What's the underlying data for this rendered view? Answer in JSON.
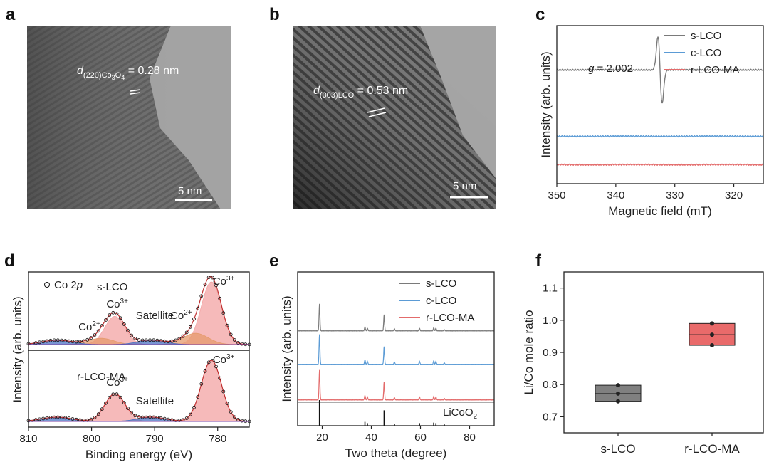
{
  "panels": {
    "a": {
      "label": "a",
      "scalebar": "5 nm",
      "d_main": "d",
      "d_sub": "(220)Co",
      "d_sub2": "3",
      "d_sub3": "O",
      "d_sub4": "4",
      "d_value": " = 0.28 nm"
    },
    "b": {
      "label": "b",
      "scalebar": "5 nm",
      "d_main": "d",
      "d_sub": "(003)LCO",
      "d_value": " = 0.53 nm"
    },
    "c": {
      "label": "c"
    },
    "d": {
      "label": "d"
    },
    "e": {
      "label": "e"
    },
    "f": {
      "label": "f"
    }
  },
  "chart_data": [
    {
      "id": "c",
      "type": "line",
      "xlabel": "Magnetic field (mT)",
      "ylabel": "Intensity (arb. units)",
      "xlim": [
        350,
        315
      ],
      "xticks": [
        350,
        340,
        330,
        320
      ],
      "annotation": {
        "g_symbol": "g",
        "g_text": " = 2.002"
      },
      "series": [
        {
          "name": "s-LCO",
          "color": "#7a7a7a",
          "baseline": 0.72,
          "peak_center": 332.5,
          "peak_amp": 0.22
        },
        {
          "name": "c-LCO",
          "color": "#5b9bd5",
          "baseline": 0.3,
          "peak_center": null,
          "peak_amp": 0
        },
        {
          "name": "r-LCO-MA",
          "color": "#e36b6b",
          "baseline": 0.12,
          "peak_center": null,
          "peak_amp": 0
        }
      ]
    },
    {
      "id": "d",
      "type": "line",
      "xlabel": "Binding energy (eV)",
      "ylabel": "Intensity (arb. units)",
      "xlim": [
        810,
        775
      ],
      "xticks": [
        810,
        800,
        790,
        780
      ],
      "legend": {
        "marker_label": "Co 2",
        "marker_label_italic": "p"
      },
      "subplots": [
        {
          "name": "s-LCO",
          "peaks": [
            {
              "label": "Co3+",
              "center": 781,
              "height": 1.0,
              "width": 1.6,
              "color": "#f3a3a3"
            },
            {
              "label": "Co3+",
              "center": 796.3,
              "height": 0.45,
              "width": 1.6,
              "color": "#f3a3a3"
            },
            {
              "label": "Co2+",
              "center": 783.5,
              "height": 0.18,
              "width": 2.0,
              "color": "#e59a6c"
            },
            {
              "label": "Co2+",
              "center": 798.5,
              "height": 0.1,
              "width": 2.0,
              "color": "#e59a6c"
            },
            {
              "label": "Satellite",
              "center": 790.5,
              "height": 0.07,
              "width": 2.2,
              "color": "#4c72c4"
            },
            {
              "label": "Satellite",
              "center": 805.5,
              "height": 0.07,
              "width": 2.4,
              "color": "#4c72c4"
            }
          ],
          "texts": {
            "co3_right": "Co",
            "co3_mid": "Co",
            "co2_right": "Co",
            "co2_left": "Co",
            "sup3": "3+",
            "sup2": "2+",
            "satellite": "Satellite"
          }
        },
        {
          "name": "r-LCO-MA",
          "peaks": [
            {
              "label": "Co3+",
              "center": 781,
              "height": 1.0,
              "width": 1.6,
              "color": "#f3a3a3"
            },
            {
              "label": "Co3+",
              "center": 796.3,
              "height": 0.45,
              "width": 1.6,
              "color": "#f3a3a3"
            },
            {
              "label": "Satellite",
              "center": 790.5,
              "height": 0.07,
              "width": 2.2,
              "color": "#4c72c4"
            },
            {
              "label": "Satellite",
              "center": 805.5,
              "height": 0.07,
              "width": 2.4,
              "color": "#4c72c4"
            }
          ],
          "texts": {
            "co3_right": "Co",
            "co3_mid": "Co",
            "sup3": "3+",
            "satellite": "Satellite"
          }
        }
      ]
    },
    {
      "id": "e",
      "type": "line",
      "xlabel": "Two theta (degree)",
      "ylabel": "Intensity (arb. units)",
      "xlim": [
        10,
        90
      ],
      "xticks": [
        20,
        40,
        60,
        80
      ],
      "peaks_2theta": [
        18.9,
        37.4,
        38.4,
        45.2,
        49.4,
        59.6,
        65.4,
        66.3,
        69.7
      ],
      "peak_rel": [
        1.0,
        0.15,
        0.1,
        0.6,
        0.08,
        0.1,
        0.12,
        0.1,
        0.05
      ],
      "series": [
        {
          "name": "s-LCO",
          "color": "#7a7a7a",
          "scale": 1.0
        },
        {
          "name": "c-LCO",
          "color": "#5b9bd5",
          "scale": 1.0
        },
        {
          "name": "r-LCO-MA",
          "color": "#e36b6b",
          "scale": 1.0
        },
        {
          "name": "",
          "color": "#111111",
          "scale": 1.0
        }
      ],
      "reference": {
        "label_main": "LiCoO",
        "label_sub": "2"
      }
    },
    {
      "id": "f",
      "type": "box",
      "xlabel": "",
      "ylabel": "Li/Co mole ratio",
      "ylim": [
        0.65,
        1.15
      ],
      "yticks": [
        0.7,
        0.8,
        0.9,
        1.0,
        1.1
      ],
      "ytick_labels": [
        "0.7",
        "0.8",
        "0.9",
        "1.0",
        "1.1"
      ],
      "categories": [
        "s-LCO",
        "r-LCO-MA"
      ],
      "boxes": [
        {
          "q1": 0.748,
          "median": 0.772,
          "q3": 0.798,
          "points": [
            0.748,
            0.772,
            0.798
          ],
          "color": "#808080"
        },
        {
          "q1": 0.922,
          "median": 0.955,
          "q3": 0.99,
          "points": [
            0.922,
            0.955,
            0.99
          ],
          "color": "#e96a6a"
        }
      ]
    }
  ]
}
